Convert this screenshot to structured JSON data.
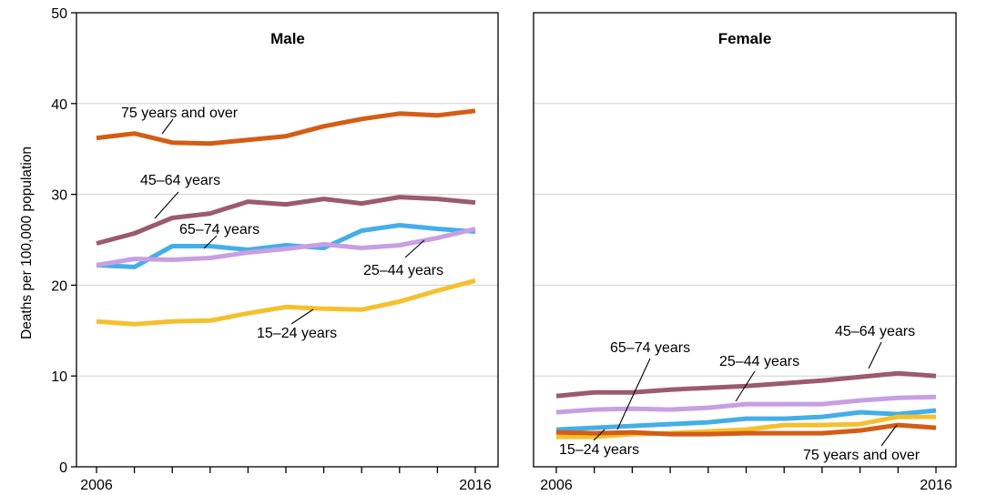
{
  "chart_data": {
    "type": "line",
    "ylabel": "Deaths per 100,000 population",
    "ylim": [
      0,
      50
    ],
    "yticks": [
      0,
      10,
      20,
      30,
      40,
      50
    ],
    "x": [
      2006,
      2007,
      2008,
      2009,
      2010,
      2011,
      2012,
      2013,
      2014,
      2015,
      2016
    ],
    "xtick_labels": [
      "2006",
      "2016"
    ],
    "grid": true,
    "panels": [
      {
        "title": "Male",
        "series": [
          {
            "name": "75 years and over",
            "color": "#d45d16",
            "values": [
              36.2,
              36.7,
              35.7,
              35.6,
              36.0,
              36.4,
              37.5,
              38.3,
              38.9,
              38.7,
              39.2
            ]
          },
          {
            "name": "45–64 years",
            "color": "#9b5a6e",
            "values": [
              24.6,
              25.7,
              27.4,
              27.9,
              29.2,
              28.9,
              29.5,
              29.0,
              29.7,
              29.5,
              29.1
            ]
          },
          {
            "name": "65–74 years",
            "color": "#44aee8",
            "values": [
              22.2,
              22.0,
              24.3,
              24.3,
              23.9,
              24.4,
              24.1,
              26.0,
              26.6,
              26.2,
              25.9
            ]
          },
          {
            "name": "25–44 years",
            "color": "#c79fe2",
            "values": [
              22.2,
              22.9,
              22.8,
              23.0,
              23.6,
              24.0,
              24.5,
              24.1,
              24.4,
              25.2,
              26.2
            ]
          },
          {
            "name": "15–24 years",
            "color": "#f5c02d",
            "values": [
              16.0,
              15.7,
              16.0,
              16.1,
              16.9,
              17.6,
              17.4,
              17.3,
              18.2,
              19.4,
              20.5
            ]
          }
        ]
      },
      {
        "title": "Female",
        "series": [
          {
            "name": "45–64 years",
            "color": "#9b5a6e",
            "values": [
              7.8,
              8.2,
              8.2,
              8.5,
              8.7,
              8.9,
              9.2,
              9.5,
              9.9,
              10.3,
              10.0
            ]
          },
          {
            "name": "25–44 years",
            "color": "#c79fe2",
            "values": [
              6.0,
              6.3,
              6.4,
              6.3,
              6.5,
              6.9,
              6.9,
              6.9,
              7.3,
              7.6,
              7.7
            ]
          },
          {
            "name": "65–74 years",
            "color": "#44aee8",
            "values": [
              4.1,
              4.3,
              4.5,
              4.7,
              4.9,
              5.3,
              5.3,
              5.5,
              6.0,
              5.8,
              6.2
            ]
          },
          {
            "name": "15–24 years",
            "color": "#f5c02d",
            "values": [
              3.3,
              3.3,
              3.6,
              3.7,
              3.9,
              4.1,
              4.6,
              4.6,
              4.7,
              5.5,
              5.5
            ]
          },
          {
            "name": "75 years and over",
            "color": "#d45d16",
            "values": [
              3.8,
              3.7,
              3.8,
              3.6,
              3.6,
              3.7,
              3.7,
              3.7,
              4.0,
              4.6,
              4.3
            ]
          }
        ]
      }
    ]
  }
}
